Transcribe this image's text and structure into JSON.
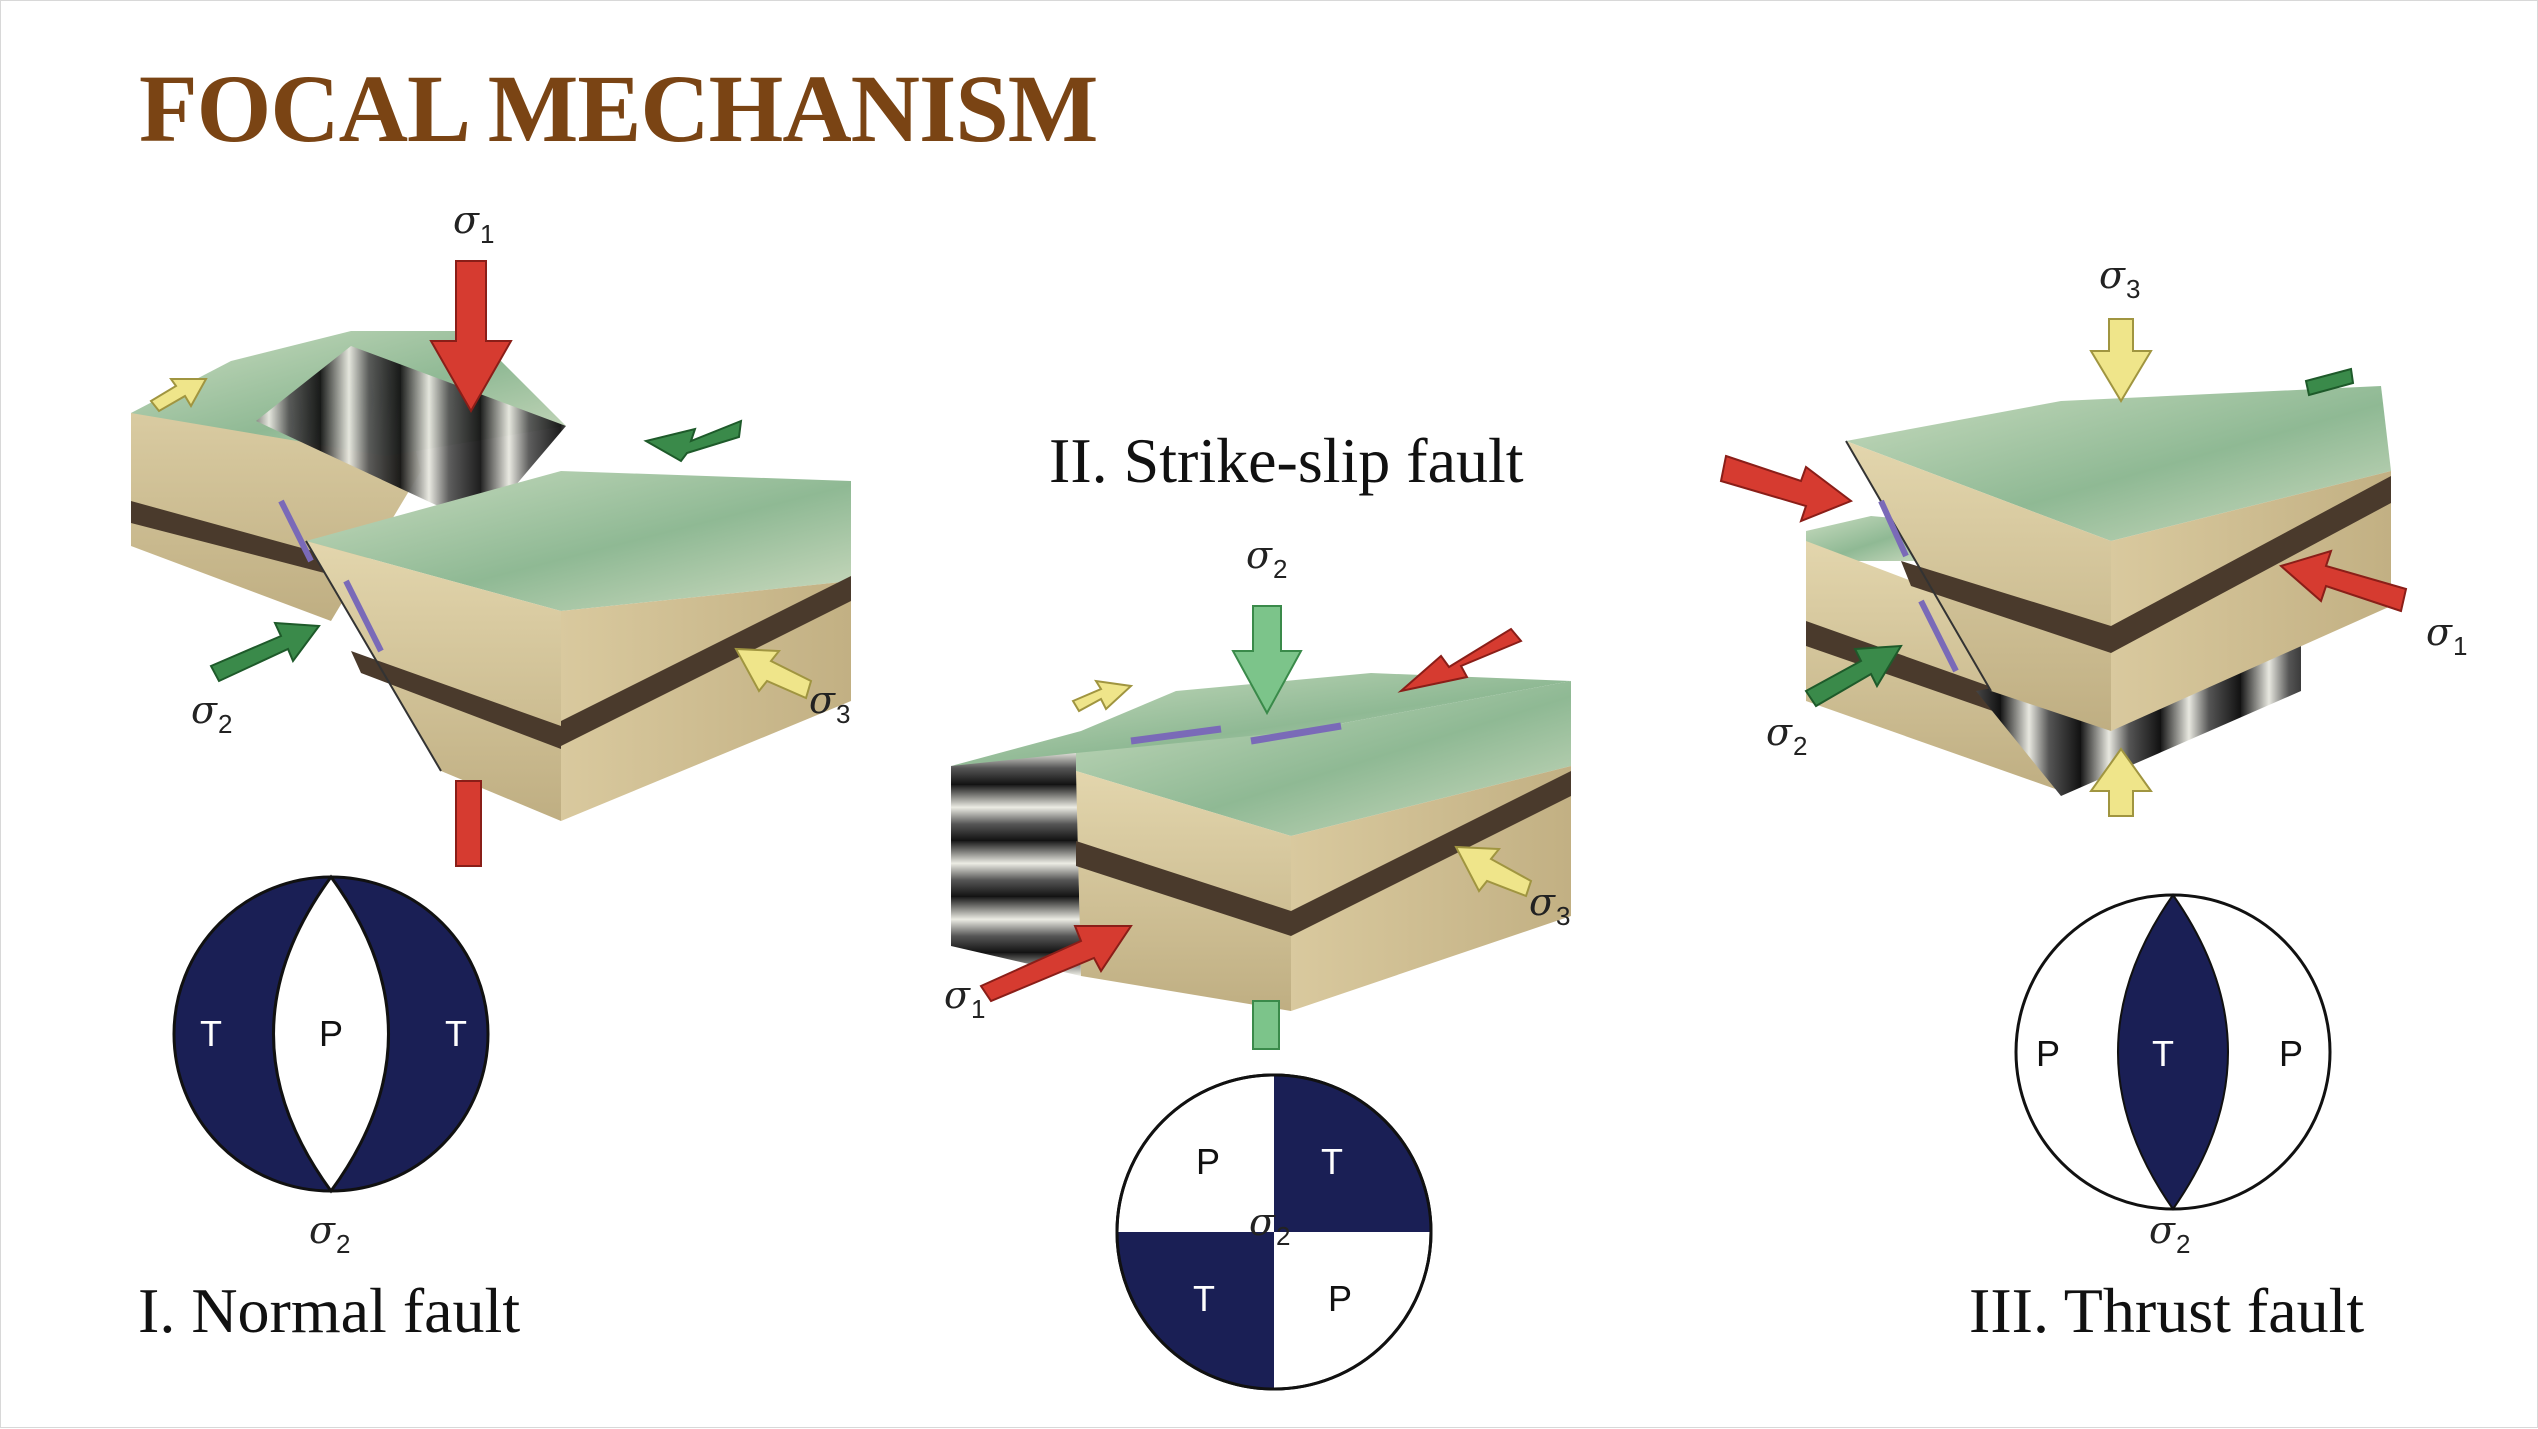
{
  "title": "FOCAL MECHANISM",
  "colors": {
    "title": "#7a4414",
    "beachball_fill": "#1a1f55",
    "sigma1_arrow": "#d63b30",
    "sigma2_arrow": "#3a8a4a",
    "sigma3_arrow": "#efe58a",
    "block_side": "#d7c79c",
    "block_top": "#a9c7a2",
    "stripe": "#4a3a2c"
  },
  "panels": {
    "normal": {
      "label": "I. Normal fault",
      "sigma_block": {
        "s1": "σ",
        "s1_sub": "1",
        "s2": "σ",
        "s2_sub": "2",
        "s3": "σ",
        "s3_sub": "3"
      },
      "beachball": {
        "left": "T",
        "center": "P",
        "right": "T",
        "below": "σ",
        "below_sub": "2"
      }
    },
    "strike_slip": {
      "label": "II. Strike-slip fault",
      "sigma_block": {
        "s1": "σ",
        "s1_sub": "1",
        "s2": "σ",
        "s2_sub": "2",
        "s3": "σ",
        "s3_sub": "3"
      },
      "beachball": {
        "top_left": "P",
        "top_right": "T",
        "bottom_left": "T",
        "bottom_right": "P",
        "center": "σ",
        "center_sub": "2"
      }
    },
    "thrust": {
      "label": "III. Thrust fault",
      "sigma_block": {
        "s1": "σ",
        "s1_sub": "1",
        "s2": "σ",
        "s2_sub": "2",
        "s3": "σ",
        "s3_sub": "3"
      },
      "beachball": {
        "left": "P",
        "center": "T",
        "right": "P",
        "below": "σ",
        "below_sub": "2"
      }
    }
  }
}
